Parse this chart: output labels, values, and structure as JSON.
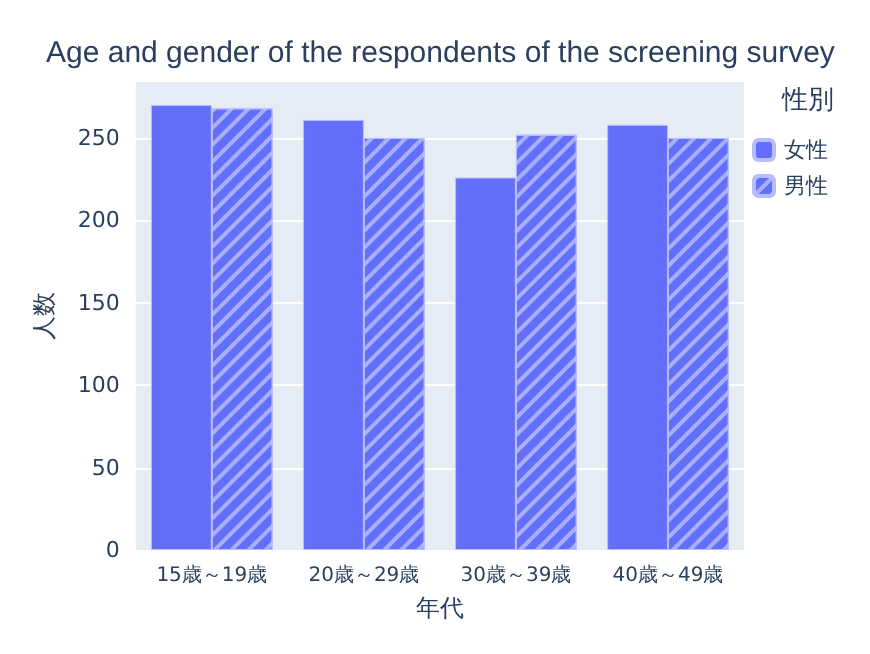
{
  "chart_data": {
    "type": "bar",
    "title": "Age and gender of the respondents of the screening survey",
    "xlabel": "年代",
    "ylabel": "人数",
    "legend_title": "性別",
    "categories": [
      "15歳～19歳",
      "20歳～29歳",
      "30歳～39歳",
      "40歳～49歳"
    ],
    "series": [
      {
        "name": "女性",
        "color": "#636efa",
        "values": [
          270,
          261,
          226,
          258
        ]
      },
      {
        "name": "男性",
        "color": "#636efa",
        "values": [
          268,
          250,
          252,
          250
        ]
      }
    ],
    "ylim": [
      0,
      284
    ],
    "yticks": [
      0,
      50,
      100,
      150,
      200,
      250
    ],
    "grid": "y",
    "legend": "top right"
  }
}
